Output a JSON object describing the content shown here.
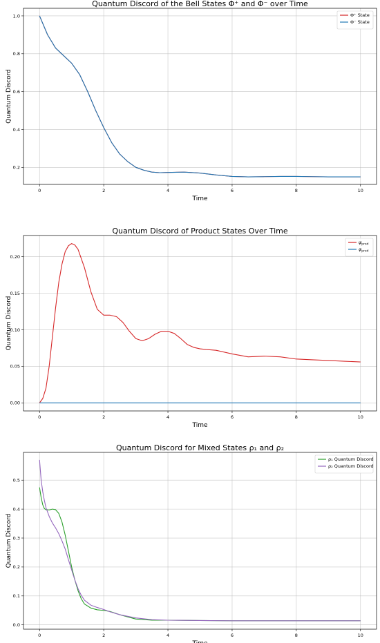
{
  "chart_data": [
    {
      "type": "line",
      "title": "Quantum Discord of the Bell States Φ⁺ and Φ⁻ over Time",
      "xlabel": "Time",
      "ylabel": "Quantum Discord",
      "xlim": [
        -0.5,
        10.5
      ],
      "ylim": [
        0.11,
        1.04
      ],
      "xticks": [
        0,
        2,
        4,
        6,
        8,
        10
      ],
      "yticks": [
        0.2,
        0.4,
        0.6,
        0.8,
        1.0
      ],
      "ytick_labels": [
        "0.2",
        "0.4",
        "0.6",
        "0.8",
        "1.0"
      ],
      "grid": true,
      "legend": "top-right",
      "series": [
        {
          "name": "Φ⁺ State",
          "color": "#d62728",
          "x": [
            0,
            0.25,
            0.5,
            0.75,
            1.0,
            1.25,
            1.5,
            1.75,
            2.0,
            2.25,
            2.5,
            2.75,
            3.0,
            3.25,
            3.5,
            3.75,
            4.0,
            4.5,
            5.0,
            5.5,
            6.0,
            6.5,
            7.0,
            7.5,
            8.0,
            8.5,
            9.0,
            9.5,
            10.0
          ],
          "y": [
            1.0,
            0.9,
            0.83,
            0.79,
            0.75,
            0.69,
            0.6,
            0.5,
            0.41,
            0.33,
            0.27,
            0.23,
            0.2,
            0.185,
            0.175,
            0.172,
            0.173,
            0.175,
            0.17,
            0.16,
            0.152,
            0.15,
            0.151,
            0.152,
            0.152,
            0.151,
            0.15,
            0.15,
            0.15
          ]
        },
        {
          "name": "Φ⁻ State",
          "color": "#1f77b4",
          "x": [
            0,
            0.25,
            0.5,
            0.75,
            1.0,
            1.25,
            1.5,
            1.75,
            2.0,
            2.25,
            2.5,
            2.75,
            3.0,
            3.25,
            3.5,
            3.75,
            4.0,
            4.5,
            5.0,
            5.5,
            6.0,
            6.5,
            7.0,
            7.5,
            8.0,
            8.5,
            9.0,
            9.5,
            10.0
          ],
          "y": [
            1.0,
            0.9,
            0.83,
            0.79,
            0.75,
            0.69,
            0.6,
            0.5,
            0.41,
            0.33,
            0.27,
            0.23,
            0.2,
            0.185,
            0.175,
            0.172,
            0.173,
            0.175,
            0.17,
            0.16,
            0.152,
            0.15,
            0.151,
            0.152,
            0.152,
            0.151,
            0.15,
            0.15,
            0.15
          ]
        }
      ]
    },
    {
      "type": "line",
      "title": "Quantum Discord of Product States Over Time",
      "xlabel": "Time",
      "ylabel": "Quantum Discord",
      "xlim": [
        -0.5,
        10.5
      ],
      "ylim": [
        -0.011,
        0.229
      ],
      "xticks": [
        0,
        2,
        4,
        6,
        8,
        10
      ],
      "yticks": [
        0.0,
        0.05,
        0.1,
        0.15,
        0.2
      ],
      "ytick_labels": [
        "0.00",
        "0.05",
        "0.10",
        "0.15",
        "0.20"
      ],
      "grid": true,
      "legend": "top-right",
      "series": [
        {
          "name": "ψprod",
          "color": "#d62728",
          "x": [
            0,
            0.1,
            0.2,
            0.3,
            0.4,
            0.5,
            0.6,
            0.7,
            0.8,
            0.9,
            1.0,
            1.1,
            1.2,
            1.4,
            1.6,
            1.8,
            2.0,
            2.2,
            2.4,
            2.6,
            2.8,
            3.0,
            3.2,
            3.4,
            3.6,
            3.8,
            4.0,
            4.2,
            4.4,
            4.6,
            4.8,
            5.0,
            5.2,
            5.5,
            6.0,
            6.5,
            7.0,
            7.5,
            8.0,
            8.5,
            9.0,
            9.5,
            10.0
          ],
          "y": [
            0.0,
            0.006,
            0.02,
            0.05,
            0.09,
            0.13,
            0.165,
            0.19,
            0.207,
            0.215,
            0.218,
            0.216,
            0.21,
            0.185,
            0.152,
            0.128,
            0.12,
            0.12,
            0.118,
            0.11,
            0.098,
            0.088,
            0.085,
            0.088,
            0.094,
            0.098,
            0.098,
            0.095,
            0.088,
            0.08,
            0.076,
            0.074,
            0.073,
            0.072,
            0.067,
            0.063,
            0.064,
            0.063,
            0.06,
            0.059,
            0.058,
            0.057,
            0.056
          ]
        },
        {
          "name": "φprod",
          "color": "#1f77b4",
          "x": [
            0,
            10
          ],
          "y": [
            0.0,
            0.0
          ]
        }
      ]
    },
    {
      "type": "line",
      "title": "Quantum Discord for Mixed States ρ₁ and ρ₂",
      "xlabel": "Time",
      "ylabel": "Quantum Discord",
      "xlim": [
        -0.5,
        10.5
      ],
      "ylim": [
        -0.015,
        0.596
      ],
      "xticks": [
        0,
        2,
        4,
        6,
        8,
        10
      ],
      "yticks": [
        0.0,
        0.1,
        0.2,
        0.3,
        0.4,
        0.5
      ],
      "ytick_labels": [
        "0.0",
        "0.1",
        "0.2",
        "0.3",
        "0.4",
        "0.5"
      ],
      "grid": true,
      "legend": "top-right",
      "series": [
        {
          "name": "ρ₁ Quantum Discord",
          "color": "#2ca02c",
          "x": [
            0,
            0.05,
            0.1,
            0.15,
            0.2,
            0.3,
            0.4,
            0.5,
            0.6,
            0.7,
            0.8,
            0.9,
            1.0,
            1.1,
            1.2,
            1.3,
            1.4,
            1.6,
            1.8,
            2.0,
            2.2,
            2.5,
            3.0,
            3.5,
            4.0,
            5.0,
            6.0,
            7.0,
            8.0,
            9.0,
            10.0
          ],
          "y": [
            0.475,
            0.44,
            0.415,
            0.402,
            0.398,
            0.397,
            0.4,
            0.398,
            0.385,
            0.355,
            0.31,
            0.255,
            0.2,
            0.155,
            0.118,
            0.09,
            0.072,
            0.058,
            0.052,
            0.05,
            0.046,
            0.035,
            0.02,
            0.016,
            0.016,
            0.015,
            0.014,
            0.014,
            0.014,
            0.014,
            0.014
          ]
        },
        {
          "name": "ρ₂ Quantum Discord",
          "color": "#9467bd",
          "x": [
            0,
            0.05,
            0.1,
            0.15,
            0.2,
            0.3,
            0.4,
            0.5,
            0.6,
            0.7,
            0.8,
            0.9,
            1.0,
            1.1,
            1.2,
            1.3,
            1.4,
            1.6,
            1.8,
            2.0,
            2.2,
            2.5,
            3.0,
            3.5,
            4.0,
            5.0,
            6.0,
            7.0,
            8.0,
            9.0,
            10.0
          ],
          "y": [
            0.57,
            0.5,
            0.46,
            0.43,
            0.405,
            0.375,
            0.352,
            0.335,
            0.315,
            0.29,
            0.262,
            0.225,
            0.19,
            0.155,
            0.125,
            0.102,
            0.085,
            0.068,
            0.06,
            0.053,
            0.045,
            0.035,
            0.024,
            0.018,
            0.016,
            0.015,
            0.014,
            0.014,
            0.014,
            0.014,
            0.014
          ]
        }
      ]
    }
  ]
}
